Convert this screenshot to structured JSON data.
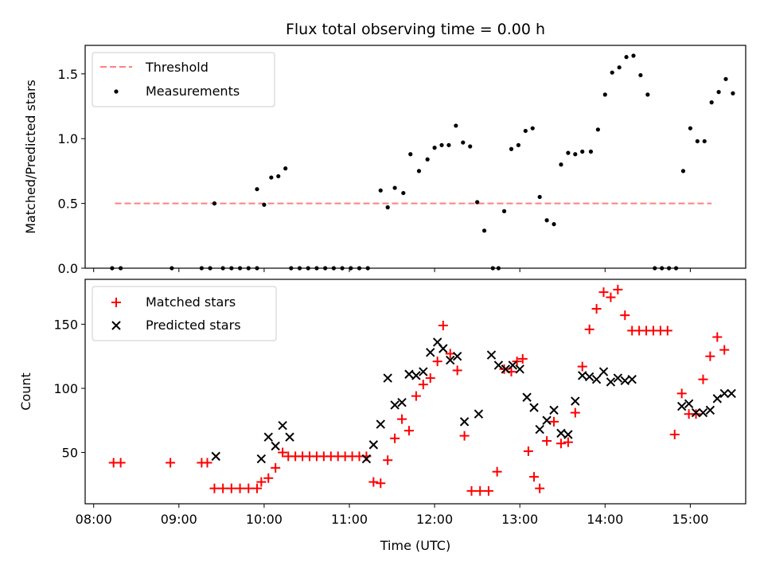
{
  "chart_data": [
    {
      "type": "scatter",
      "panel": "top",
      "title": "Flux total observing time = 0.00 h",
      "xlabel": "",
      "ylabel": "Matched/Predicted stars",
      "ylim": [
        0,
        1.72
      ],
      "yticks": [
        0.0,
        0.5,
        1.0,
        1.5
      ],
      "ytick_labels": [
        "0.0",
        "0.5",
        "1.0",
        "1.5"
      ],
      "legend_position": "upper-left",
      "grid": false,
      "colors": {
        "threshold": "#ff7f7f",
        "measurements": "#000000"
      },
      "series": [
        {
          "name": "Threshold",
          "style": "dashed-line",
          "x": [
            "08:15",
            "15:15"
          ],
          "y": [
            0.5,
            0.5
          ]
        },
        {
          "name": "Measurements",
          "style": "dot",
          "points": [
            [
              "08:13",
              0
            ],
            [
              "08:19",
              0
            ],
            [
              "08:55",
              0
            ],
            [
              "09:16",
              0
            ],
            [
              "09:22",
              0
            ],
            [
              "09:25",
              0.5
            ],
            [
              "09:31",
              0
            ],
            [
              "09:37",
              0
            ],
            [
              "09:43",
              0
            ],
            [
              "09:49",
              0
            ],
            [
              "09:55",
              0
            ],
            [
              "09:55",
              0.61
            ],
            [
              "10:00",
              0.49
            ],
            [
              "10:05",
              0.7
            ],
            [
              "10:10",
              0.71
            ],
            [
              "10:15",
              0.77
            ],
            [
              "10:19",
              0
            ],
            [
              "10:25",
              0
            ],
            [
              "10:31",
              0
            ],
            [
              "10:37",
              0
            ],
            [
              "10:43",
              0
            ],
            [
              "10:49",
              0
            ],
            [
              "10:55",
              0
            ],
            [
              "11:01",
              0
            ],
            [
              "11:07",
              0
            ],
            [
              "11:13",
              0
            ],
            [
              "11:22",
              0.6
            ],
            [
              "11:27",
              0.47
            ],
            [
              "11:32",
              0.62
            ],
            [
              "11:38",
              0.58
            ],
            [
              "11:43",
              0.88
            ],
            [
              "11:49",
              0.75
            ],
            [
              "11:55",
              0.84
            ],
            [
              "12:00",
              0.93
            ],
            [
              "12:05",
              0.95
            ],
            [
              "12:10",
              0.95
            ],
            [
              "12:15",
              1.1
            ],
            [
              "12:20",
              0.97
            ],
            [
              "12:25",
              0.94
            ],
            [
              "12:30",
              0.51
            ],
            [
              "12:35",
              0.29
            ],
            [
              "12:41",
              0
            ],
            [
              "12:45",
              0
            ],
            [
              "12:49",
              0.44
            ],
            [
              "12:54",
              0.92
            ],
            [
              "12:59",
              0.95
            ],
            [
              "13:04",
              1.06
            ],
            [
              "13:09",
              1.08
            ],
            [
              "13:14",
              0.55
            ],
            [
              "13:19",
              0.37
            ],
            [
              "13:24",
              0.34
            ],
            [
              "13:29",
              0.8
            ],
            [
              "13:34",
              0.89
            ],
            [
              "13:39",
              0.88
            ],
            [
              "13:44",
              0.9
            ],
            [
              "13:50",
              0.9
            ],
            [
              "13:55",
              1.07
            ],
            [
              "14:00",
              1.34
            ],
            [
              "14:05",
              1.51
            ],
            [
              "14:10",
              1.55
            ],
            [
              "14:15",
              1.63
            ],
            [
              "14:20",
              1.64
            ],
            [
              "14:25",
              1.49
            ],
            [
              "14:30",
              1.34
            ],
            [
              "14:35",
              0
            ],
            [
              "14:40",
              0
            ],
            [
              "14:45",
              0
            ],
            [
              "14:50",
              0
            ],
            [
              "14:55",
              0.75
            ],
            [
              "15:00",
              1.08
            ],
            [
              "15:05",
              0.98
            ],
            [
              "15:10",
              0.98
            ],
            [
              "15:15",
              1.28
            ],
            [
              "15:20",
              1.36
            ],
            [
              "15:25",
              1.46
            ],
            [
              "15:30",
              1.35
            ]
          ]
        }
      ]
    },
    {
      "type": "scatter",
      "panel": "bottom",
      "title": "",
      "xlabel": "Time (UTC)",
      "ylabel": "Count",
      "ylim": [
        10,
        185
      ],
      "yticks": [
        50,
        100,
        150
      ],
      "ytick_labels": [
        "50",
        "100",
        "150"
      ],
      "xlim": [
        "07:54",
        "15:39"
      ],
      "xticks": [
        "08:00",
        "09:00",
        "10:00",
        "11:00",
        "12:00",
        "13:00",
        "14:00",
        "15:00"
      ],
      "xtick_labels": [
        "08:00",
        "09:00",
        "10:00",
        "11:00",
        "12:00",
        "13:00",
        "14:00",
        "15:00"
      ],
      "legend_position": "upper-left",
      "grid": false,
      "colors": {
        "matched": "#ff0000",
        "predicted": "#000000"
      },
      "series": [
        {
          "name": "Matched stars",
          "marker": "plus",
          "points": [
            [
              "08:14",
              42
            ],
            [
              "08:19",
              42
            ],
            [
              "08:54",
              42
            ],
            [
              "09:16",
              42
            ],
            [
              "09:20",
              42
            ],
            [
              "09:25",
              22
            ],
            [
              "09:31",
              22
            ],
            [
              "09:37",
              22
            ],
            [
              "09:43",
              22
            ],
            [
              "09:49",
              22
            ],
            [
              "09:55",
              22
            ],
            [
              "09:58",
              27
            ],
            [
              "10:03",
              30
            ],
            [
              "10:08",
              38
            ],
            [
              "10:13",
              50
            ],
            [
              "10:17",
              47
            ],
            [
              "10:22",
              47
            ],
            [
              "10:27",
              47
            ],
            [
              "10:32",
              47
            ],
            [
              "10:37",
              47
            ],
            [
              "10:42",
              47
            ],
            [
              "10:47",
              47
            ],
            [
              "10:52",
              47
            ],
            [
              "10:57",
              47
            ],
            [
              "11:02",
              47
            ],
            [
              "11:07",
              47
            ],
            [
              "11:12",
              47
            ],
            [
              "11:17",
              27
            ],
            [
              "11:22",
              26
            ],
            [
              "11:27",
              44
            ],
            [
              "11:32",
              61
            ],
            [
              "11:37",
              76
            ],
            [
              "11:42",
              67
            ],
            [
              "11:47",
              94
            ],
            [
              "11:52",
              103
            ],
            [
              "11:57",
              108
            ],
            [
              "12:02",
              121
            ],
            [
              "12:06",
              149
            ],
            [
              "12:11",
              127
            ],
            [
              "12:16",
              114
            ],
            [
              "12:21",
              63
            ],
            [
              "12:26",
              20
            ],
            [
              "12:32",
              20
            ],
            [
              "12:38",
              20
            ],
            [
              "12:44",
              35
            ],
            [
              "12:49",
              115
            ],
            [
              "12:54",
              113
            ],
            [
              "12:58",
              121
            ],
            [
              "13:02",
              123
            ],
            [
              "13:06",
              51
            ],
            [
              "13:10",
              31
            ],
            [
              "13:14",
              22
            ],
            [
              "13:19",
              59
            ],
            [
              "13:24",
              74
            ],
            [
              "13:29",
              57
            ],
            [
              "13:34",
              58
            ],
            [
              "13:39",
              81
            ],
            [
              "13:44",
              117
            ],
            [
              "13:49",
              146
            ],
            [
              "13:54",
              162
            ],
            [
              "13:59",
              175
            ],
            [
              "14:04",
              171
            ],
            [
              "14:09",
              177
            ],
            [
              "14:14",
              157
            ],
            [
              "14:19",
              145
            ],
            [
              "14:24",
              145
            ],
            [
              "14:29",
              145
            ],
            [
              "14:34",
              145
            ],
            [
              "14:39",
              145
            ],
            [
              "14:44",
              145
            ],
            [
              "14:49",
              64
            ],
            [
              "14:54",
              96
            ],
            [
              "14:59",
              80
            ],
            [
              "15:04",
              80
            ],
            [
              "15:09",
              107
            ],
            [
              "15:14",
              125
            ],
            [
              "15:19",
              140
            ],
            [
              "15:24",
              130
            ]
          ]
        },
        {
          "name": "Predicted stars",
          "marker": "x",
          "points": [
            [
              "09:26",
              47
            ],
            [
              "09:58",
              45
            ],
            [
              "10:03",
              62
            ],
            [
              "10:08",
              55
            ],
            [
              "10:13",
              71
            ],
            [
              "10:18",
              62
            ],
            [
              "11:12",
              45
            ],
            [
              "11:17",
              56
            ],
            [
              "11:22",
              72
            ],
            [
              "11:27",
              108
            ],
            [
              "11:32",
              87
            ],
            [
              "11:37",
              89
            ],
            [
              "11:42",
              111
            ],
            [
              "11:47",
              110
            ],
            [
              "11:52",
              113
            ],
            [
              "11:57",
              128
            ],
            [
              "12:02",
              136
            ],
            [
              "12:06",
              131
            ],
            [
              "12:11",
              122
            ],
            [
              "12:16",
              125
            ],
            [
              "12:21",
              74
            ],
            [
              "12:31",
              80
            ],
            [
              "12:40",
              126
            ],
            [
              "12:45",
              118
            ],
            [
              "12:50",
              115
            ],
            [
              "12:55",
              118
            ],
            [
              "13:00",
              115
            ],
            [
              "13:05",
              93
            ],
            [
              "13:10",
              85
            ],
            [
              "13:14",
              68
            ],
            [
              "13:19",
              75
            ],
            [
              "13:24",
              83
            ],
            [
              "13:29",
              65
            ],
            [
              "13:34",
              64
            ],
            [
              "13:39",
              90
            ],
            [
              "13:44",
              110
            ],
            [
              "13:49",
              109
            ],
            [
              "13:54",
              107
            ],
            [
              "13:59",
              113
            ],
            [
              "14:04",
              105
            ],
            [
              "14:09",
              108
            ],
            [
              "14:14",
              106
            ],
            [
              "14:19",
              107
            ],
            [
              "14:54",
              86
            ],
            [
              "14:59",
              88
            ],
            [
              "15:04",
              81
            ],
            [
              "15:09",
              81
            ],
            [
              "15:14",
              83
            ],
            [
              "15:19",
              92
            ],
            [
              "15:24",
              96
            ],
            [
              "15:29",
              96
            ]
          ]
        }
      ]
    }
  ]
}
